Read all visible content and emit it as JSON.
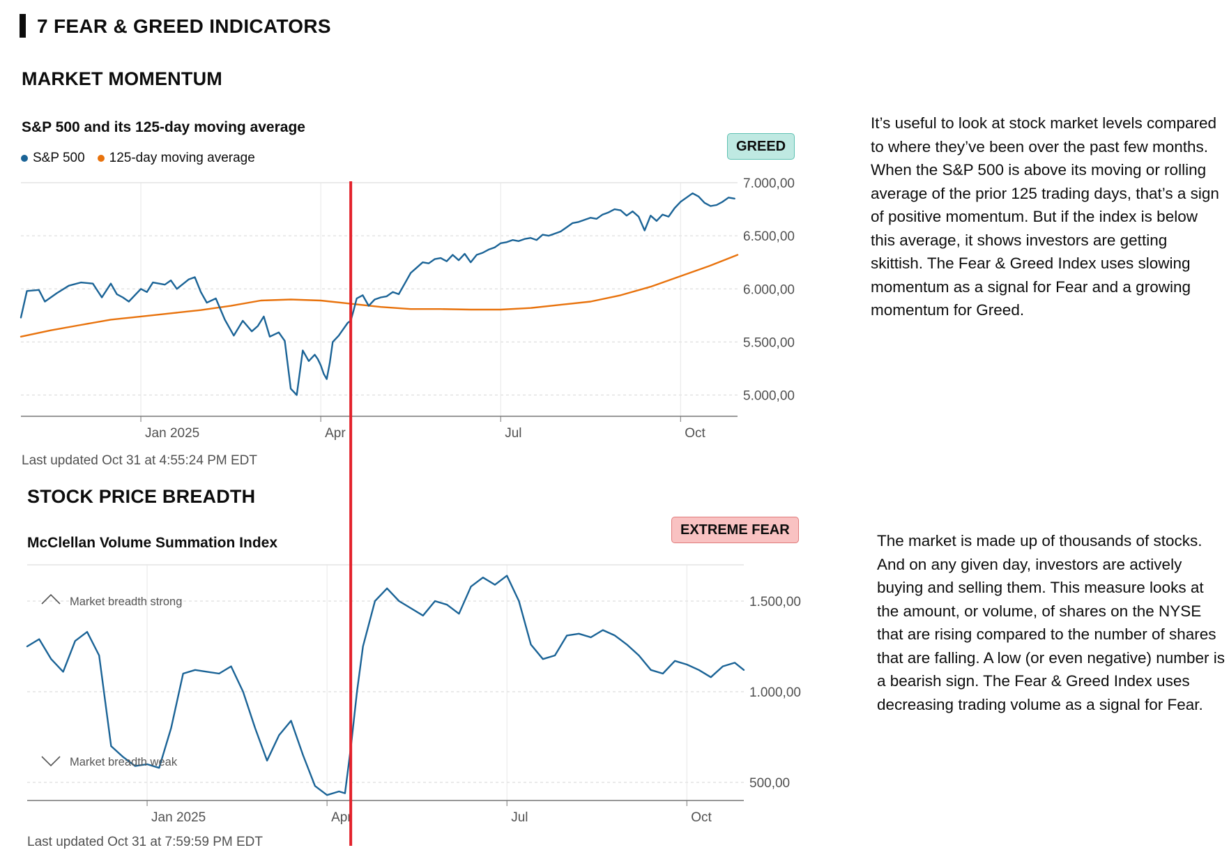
{
  "page": {
    "section_title": "7 FEAR & GREED INDICATORS"
  },
  "momentum": {
    "heading": "MARKET MOMENTUM",
    "chart_title": "S&P 500 and its 125-day moving average",
    "legend_sp": "S&P 500",
    "legend_ma": "125-day moving average",
    "badge": "GREED",
    "updated": "Last updated Oct 31 at 4:55:24 PM EDT",
    "description": "It’s useful to look at stock market levels compared to where they’ve been over the past few months. When the S&P 500 is above its moving or rolling average of the prior 125 trading days, that’s a sign of positive momentum. But if the index is below this average, it shows investors are getting skittish. The Fear & Greed Index uses slowing momentum as a signal for Fear and a growing momentum for Greed."
  },
  "breadth": {
    "heading": "STOCK PRICE BREADTH",
    "chart_title": "McClellan Volume Summation Index",
    "badge": "EXTREME FEAR",
    "updated": "Last updated Oct 31 at 7:59:59 PM EDT",
    "strong_label": "Market breadth strong",
    "weak_label": "Market breadth weak",
    "description": "The market is made up of thousands of stocks. And on any given day, investors are actively buying and selling them. This measure looks at the amount, or volume, of shares on the NYSE that are rising compared to the number of shares that are falling. A low (or even negative) number is a bearish sign. The Fear & Greed Index uses decreasing trading volume as a signal for Fear."
  },
  "colors": {
    "sp500": "#1a6396",
    "moving_avg": "#e8720c",
    "mcclellan": "#1a6396",
    "marker": "#e3212a",
    "grid": "#d6d6d6",
    "axis": "#777777",
    "greed_bg": "#bfe9e2",
    "fear_bg": "#f9c2c2"
  },
  "chart_data": [
    {
      "type": "line",
      "title": "S&P 500 and its 125-day moving average",
      "x_unit": "months since Nov 1 2024",
      "xlim": [
        0,
        11.95
      ],
      "ylim": [
        4800,
        7000
      ],
      "y_ticks": [
        5000,
        5500,
        6000,
        6500,
        7000
      ],
      "y_tick_labels": [
        "5.000,00",
        "5.500,00",
        "6.000,00",
        "6.500,00",
        "7.000,00"
      ],
      "x_ticks": [
        {
          "x": 2,
          "label": "Jan 2025"
        },
        {
          "x": 5,
          "label": "Apr"
        },
        {
          "x": 8,
          "label": "Jul"
        },
        {
          "x": 11,
          "label": "Oct"
        }
      ],
      "marker_x": 5.5,
      "series": [
        {
          "name": "S&P 500",
          "x": [
            0,
            0.1,
            0.3,
            0.4,
            0.6,
            0.8,
            1.0,
            1.2,
            1.35,
            1.5,
            1.6,
            1.7,
            1.8,
            2.0,
            2.1,
            2.2,
            2.4,
            2.5,
            2.6,
            2.8,
            2.9,
            3.0,
            3.1,
            3.25,
            3.4,
            3.55,
            3.7,
            3.85,
            3.95,
            4.05,
            4.15,
            4.3,
            4.4,
            4.5,
            4.6,
            4.7,
            4.8,
            4.9,
            4.95,
            5.0,
            5.05,
            5.1,
            5.15,
            5.2,
            5.3,
            5.35,
            5.45,
            5.5,
            5.55,
            5.6,
            5.7,
            5.8,
            5.9,
            6.0,
            6.1,
            6.2,
            6.3,
            6.4,
            6.5,
            6.6,
            6.7,
            6.8,
            6.9,
            7.0,
            7.1,
            7.2,
            7.3,
            7.4,
            7.5,
            7.6,
            7.7,
            7.8,
            7.9,
            8.0,
            8.1,
            8.2,
            8.3,
            8.4,
            8.5,
            8.6,
            8.7,
            8.8,
            8.9,
            9.0,
            9.1,
            9.2,
            9.3,
            9.4,
            9.5,
            9.6,
            9.7,
            9.8,
            9.9,
            10.0,
            10.1,
            10.2,
            10.3,
            10.4,
            10.5,
            10.6,
            10.7,
            10.8,
            10.9,
            11.0,
            11.1,
            11.2,
            11.3,
            11.4,
            11.5,
            11.6,
            11.7,
            11.8,
            11.9
          ],
          "values": [
            5730,
            5980,
            5990,
            5880,
            5960,
            6030,
            6060,
            6050,
            5920,
            6050,
            5950,
            5920,
            5880,
            6000,
            5970,
            6060,
            6040,
            6080,
            6000,
            6090,
            6110,
            5970,
            5870,
            5910,
            5710,
            5560,
            5700,
            5600,
            5650,
            5740,
            5550,
            5590,
            5510,
            5060,
            5000,
            5420,
            5320,
            5380,
            5340,
            5280,
            5200,
            5150,
            5300,
            5500,
            5560,
            5600,
            5680,
            5700,
            5800,
            5910,
            5940,
            5840,
            5900,
            5920,
            5930,
            5970,
            5950,
            6050,
            6150,
            6200,
            6250,
            6240,
            6280,
            6290,
            6260,
            6320,
            6270,
            6330,
            6250,
            6320,
            6340,
            6370,
            6390,
            6430,
            6440,
            6460,
            6450,
            6470,
            6480,
            6460,
            6510,
            6500,
            6520,
            6540,
            6580,
            6620,
            6630,
            6650,
            6670,
            6660,
            6700,
            6720,
            6750,
            6740,
            6690,
            6730,
            6680,
            6550,
            6690,
            6640,
            6700,
            6680,
            6760,
            6820,
            6860,
            6900,
            6870,
            6810,
            6780,
            6790,
            6820,
            6860,
            6850
          ]
        },
        {
          "name": "125-day moving average",
          "x": [
            0,
            0.5,
            1.0,
            1.5,
            2.0,
            2.5,
            3.0,
            3.5,
            4.0,
            4.5,
            5.0,
            5.5,
            6.0,
            6.5,
            7.0,
            7.5,
            8.0,
            8.5,
            9.0,
            9.5,
            10.0,
            10.5,
            11.0,
            11.5,
            11.95
          ],
          "values": [
            5550,
            5610,
            5660,
            5710,
            5740,
            5770,
            5800,
            5840,
            5890,
            5900,
            5890,
            5860,
            5830,
            5810,
            5810,
            5805,
            5805,
            5820,
            5850,
            5880,
            5940,
            6020,
            6120,
            6220,
            6320
          ]
        }
      ]
    },
    {
      "type": "line",
      "title": "McClellan Volume Summation Index",
      "x_unit": "months since Nov 1 2024",
      "xlim": [
        0,
        11.95
      ],
      "ylim": [
        400,
        1700
      ],
      "y_ticks": [
        500,
        1000,
        1500
      ],
      "y_tick_labels": [
        "500,00",
        "1.000,00",
        "1.500,00"
      ],
      "x_ticks": [
        {
          "x": 2,
          "label": "Jan 2025"
        },
        {
          "x": 5,
          "label": "Apr"
        },
        {
          "x": 8,
          "label": "Jul"
        },
        {
          "x": 11,
          "label": "Oct"
        }
      ],
      "annotations": [
        "Market breadth strong",
        "Market breadth weak"
      ],
      "marker_x": 5.3,
      "series": [
        {
          "name": "McClellan Volume Summation Index",
          "x": [
            0,
            0.2,
            0.4,
            0.6,
            0.8,
            1.0,
            1.2,
            1.4,
            1.6,
            1.8,
            2.0,
            2.2,
            2.4,
            2.6,
            2.8,
            3.0,
            3.2,
            3.4,
            3.6,
            3.8,
            4.0,
            4.2,
            4.4,
            4.6,
            4.8,
            5.0,
            5.1,
            5.2,
            5.3,
            5.4,
            5.5,
            5.6,
            5.8,
            6.0,
            6.2,
            6.4,
            6.6,
            6.8,
            7.0,
            7.2,
            7.4,
            7.6,
            7.8,
            8.0,
            8.2,
            8.4,
            8.6,
            8.8,
            9.0,
            9.2,
            9.4,
            9.6,
            9.8,
            10.0,
            10.2,
            10.4,
            10.6,
            10.8,
            11.0,
            11.2,
            11.4,
            11.6,
            11.8,
            11.95
          ],
          "values": [
            1250,
            1290,
            1180,
            1110,
            1280,
            1330,
            1200,
            700,
            640,
            590,
            600,
            580,
            800,
            1100,
            1120,
            1110,
            1100,
            1140,
            1000,
            800,
            620,
            760,
            840,
            650,
            480,
            430,
            440,
            450,
            440,
            700,
            1000,
            1250,
            1500,
            1570,
            1500,
            1460,
            1420,
            1500,
            1480,
            1430,
            1580,
            1630,
            1590,
            1640,
            1500,
            1260,
            1180,
            1200,
            1310,
            1320,
            1300,
            1340,
            1310,
            1260,
            1200,
            1120,
            1100,
            1170,
            1150,
            1120,
            1080,
            1140,
            1160,
            1120
          ]
        }
      ]
    }
  ]
}
